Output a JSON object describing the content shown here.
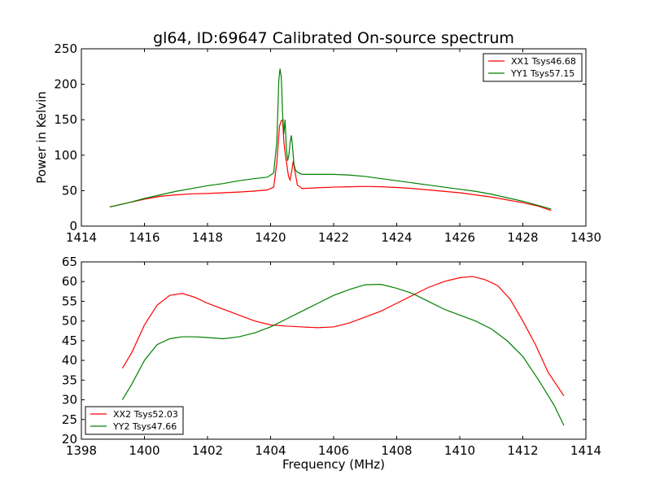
{
  "title": "gl64, ID:69647 Calibrated On-source spectrum",
  "colors": {
    "red": "#ff0000",
    "green": "#008000",
    "axes": "#000000"
  },
  "chart_data": [
    {
      "type": "line",
      "xlabel": "",
      "ylabel": "Power in Kelvin",
      "xlim": [
        1414,
        1430
      ],
      "ylim": [
        0,
        250
      ],
      "xticks": [
        1414,
        1416,
        1418,
        1420,
        1422,
        1424,
        1426,
        1428,
        1430
      ],
      "yticks": [
        0,
        50,
        100,
        150,
        200,
        250
      ],
      "grid": false,
      "legend_position": "top-right",
      "series": [
        {
          "name": "XX1 Tsys46.68",
          "color": "#ff0000",
          "x": [
            1414.9,
            1415.5,
            1416.0,
            1416.5,
            1417.0,
            1417.5,
            1418.0,
            1418.5,
            1419.0,
            1419.5,
            1419.9,
            1420.1,
            1420.2,
            1420.28,
            1420.33,
            1420.38,
            1420.42,
            1420.47,
            1420.52,
            1420.57,
            1420.62,
            1420.68,
            1420.72,
            1420.77,
            1420.85,
            1421.0,
            1421.5,
            1422.0,
            1422.5,
            1423.0,
            1423.5,
            1424.0,
            1424.5,
            1425.0,
            1425.5,
            1426.0,
            1426.5,
            1427.0,
            1427.5,
            1428.0,
            1428.5,
            1428.9
          ],
          "y": [
            27,
            33,
            38,
            42,
            44,
            45.5,
            46,
            47,
            48,
            49.5,
            51,
            55,
            90,
            140,
            148,
            150,
            120,
            100,
            85,
            70,
            65,
            80,
            92,
            78,
            58,
            53,
            54,
            55,
            55.5,
            56,
            55.5,
            54.5,
            53,
            51,
            49,
            47,
            44,
            41,
            37,
            33,
            28,
            22
          ]
        },
        {
          "name": "YY1 Tsys57.15",
          "color": "#008000",
          "x": [
            1414.9,
            1415.5,
            1416.0,
            1416.5,
            1417.0,
            1417.5,
            1418.0,
            1418.5,
            1419.0,
            1419.5,
            1419.9,
            1420.1,
            1420.2,
            1420.26,
            1420.3,
            1420.34,
            1420.38,
            1420.42,
            1420.46,
            1420.5,
            1420.54,
            1420.58,
            1420.62,
            1420.66,
            1420.7,
            1420.74,
            1420.78,
            1420.85,
            1421.0,
            1421.5,
            1422.0,
            1422.5,
            1423.0,
            1423.5,
            1424.0,
            1424.5,
            1425.0,
            1425.5,
            1426.0,
            1426.5,
            1427.0,
            1427.5,
            1428.0,
            1428.5,
            1428.9
          ],
          "y": [
            27,
            33,
            39,
            44,
            49,
            53,
            57,
            60,
            64,
            67,
            69,
            75,
            120,
            205,
            222,
            210,
            160,
            130,
            150,
            110,
            92,
            100,
            118,
            128,
            110,
            88,
            80,
            76,
            73,
            73,
            73,
            72,
            70,
            67,
            64,
            61,
            58,
            55,
            52,
            49,
            45,
            40,
            35,
            29,
            24
          ]
        }
      ]
    },
    {
      "type": "line",
      "xlabel": "Frequency (MHz)",
      "ylabel": "",
      "xlim": [
        1398,
        1414
      ],
      "ylim": [
        20,
        65
      ],
      "xticks": [
        1398,
        1400,
        1402,
        1404,
        1406,
        1408,
        1410,
        1412,
        1414
      ],
      "yticks": [
        20,
        25,
        30,
        35,
        40,
        45,
        50,
        55,
        60,
        65
      ],
      "grid": false,
      "legend_position": "bottom-left",
      "series": [
        {
          "name": "XX2 Tsys52.03",
          "color": "#ff0000",
          "x": [
            1399.3,
            1399.6,
            1400.0,
            1400.4,
            1400.8,
            1401.2,
            1401.6,
            1402.0,
            1402.5,
            1403.0,
            1403.5,
            1404.0,
            1404.5,
            1405.0,
            1405.5,
            1406.0,
            1406.5,
            1407.0,
            1407.5,
            1408.0,
            1408.5,
            1409.0,
            1409.5,
            1410.0,
            1410.4,
            1410.8,
            1411.2,
            1411.6,
            1412.0,
            1412.4,
            1412.8,
            1413.3
          ],
          "y": [
            38,
            42,
            49,
            54,
            56.5,
            57,
            56,
            54.5,
            53,
            51.5,
            50,
            49,
            48.7,
            48.5,
            48.3,
            48.5,
            49.5,
            51,
            52.5,
            54.5,
            56.5,
            58.5,
            60,
            61,
            61.3,
            60.5,
            59,
            55.5,
            50,
            44,
            37,
            31
          ]
        },
        {
          "name": "YY2 Tsys47.66",
          "color": "#008000",
          "x": [
            1399.3,
            1399.6,
            1400.0,
            1400.4,
            1400.8,
            1401.2,
            1401.6,
            1402.0,
            1402.5,
            1403.0,
            1403.5,
            1404.0,
            1404.5,
            1405.0,
            1405.5,
            1406.0,
            1406.5,
            1407.0,
            1407.5,
            1408.0,
            1408.5,
            1409.0,
            1409.5,
            1410.0,
            1410.5,
            1411.0,
            1411.5,
            1412.0,
            1412.5,
            1413.0,
            1413.3
          ],
          "y": [
            30,
            34,
            40,
            44,
            45.5,
            46,
            46,
            45.8,
            45.5,
            46,
            47,
            48.5,
            50.5,
            52.5,
            54.5,
            56.5,
            58,
            59.2,
            59.3,
            58.3,
            57,
            55,
            53,
            51.5,
            50,
            48,
            45,
            41,
            35,
            28.5,
            23.5
          ]
        }
      ]
    }
  ]
}
